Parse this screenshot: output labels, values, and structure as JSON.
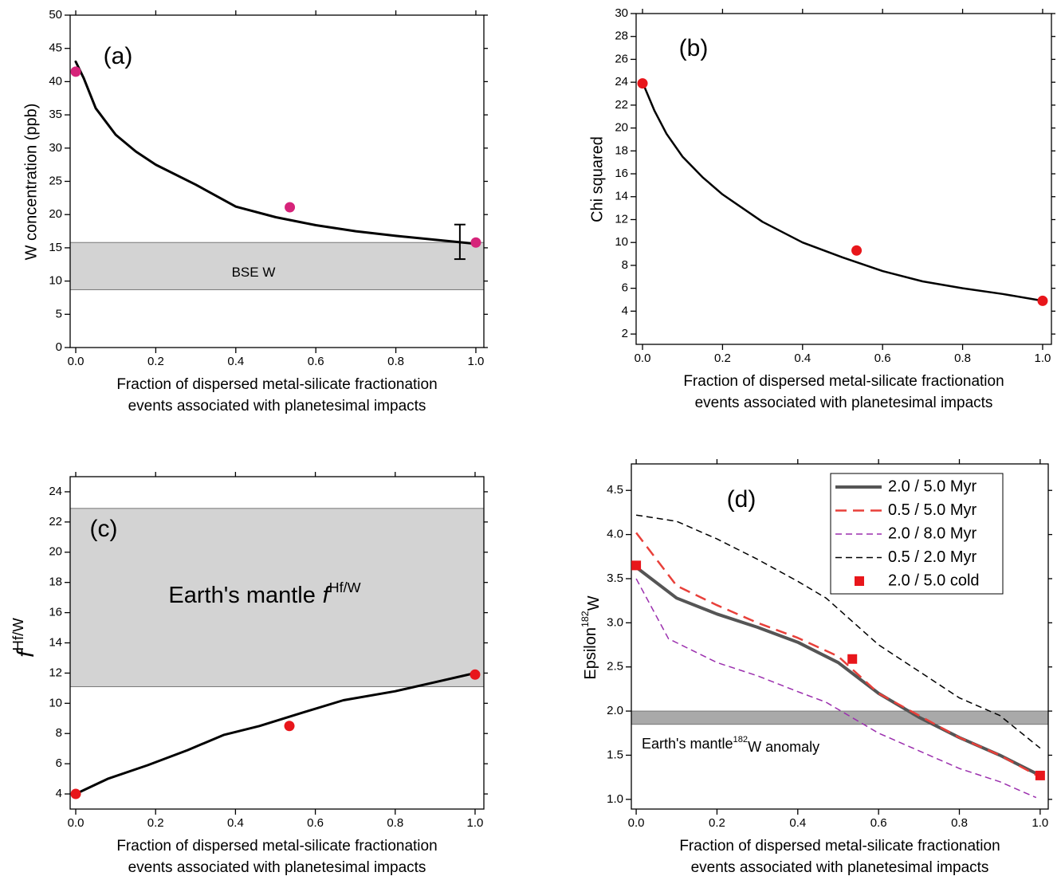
{
  "chart_data": [
    {
      "type": "line",
      "panel_label": "(a)",
      "ylabel": "W concentration (ppb)",
      "xlabel": [
        "Fraction of dispersed metal-silicate fractionation",
        "events associated with planetesimal impacts"
      ],
      "xlim": [
        -0.014,
        1.02
      ],
      "ylim": [
        0,
        50
      ],
      "xticks": [
        {
          "value": 0,
          "label": "0.0"
        },
        0.2,
        0.4,
        0.6,
        0.8,
        {
          "value": 1,
          "label": "1.0"
        }
      ],
      "yticks": [
        0,
        5,
        10,
        15,
        20,
        25,
        30,
        35,
        40,
        45,
        50
      ],
      "bands": [
        {
          "y0": 8.7,
          "y1": 15.8,
          "color": "#d3d3d3",
          "label": [
            "BSE W"
          ]
        }
      ],
      "series": [
        {
          "color": "#000000",
          "linewidth": 3,
          "line_style": "solid",
          "x": [
            0,
            0.02,
            0.05,
            0.1,
            0.15,
            0.2,
            0.3,
            0.4,
            0.5,
            0.6,
            0.7,
            0.8,
            0.9,
            1.0
          ],
          "values": [
            43,
            40.5,
            36,
            32,
            29.5,
            27.5,
            24.5,
            21.2,
            19.6,
            18.4,
            17.5,
            16.8,
            16.2,
            15.6
          ]
        },
        {
          "color": "#d6247a",
          "marker": "circle",
          "x": [
            0,
            0.535,
            1.0
          ],
          "values": [
            41.5,
            21.1,
            15.8
          ]
        }
      ],
      "error_bars": {
        "color": "#000000",
        "x": [
          0.96
        ],
        "values": [
          15.9
        ],
        "errors": [
          2.6
        ]
      }
    },
    {
      "type": "line",
      "panel_label": "(b)",
      "ylabel": "Chi squared",
      "xlabel": [
        "Fraction of dispersed metal-silicate fractionation",
        "events associated with planetesimal impacts"
      ],
      "xlim": [
        -0.016,
        1.022
      ],
      "ylim": [
        1.1,
        30
      ],
      "xticks": [
        {
          "value": 0,
          "label": "0.0"
        },
        0.2,
        0.4,
        0.6,
        0.8,
        {
          "value": 1,
          "label": "1.0"
        }
      ],
      "yticks": [
        2,
        4,
        6,
        8,
        10,
        12,
        14,
        16,
        18,
        20,
        22,
        24,
        26,
        28,
        30
      ],
      "series": [
        {
          "color": "#000000",
          "linewidth": 2.5,
          "line_style": "solid",
          "x": [
            0,
            0.03,
            0.06,
            0.1,
            0.15,
            0.2,
            0.3,
            0.4,
            0.5,
            0.6,
            0.7,
            0.8,
            0.9,
            1.0
          ],
          "values": [
            24,
            21.5,
            19.5,
            17.5,
            15.7,
            14.2,
            11.8,
            10,
            8.7,
            7.5,
            6.6,
            6,
            5.5,
            4.9
          ]
        },
        {
          "color": "#e8161b",
          "marker": "circle",
          "x": [
            0,
            0.535,
            1.0
          ],
          "values": [
            23.9,
            9.3,
            4.9
          ]
        }
      ]
    },
    {
      "type": "line",
      "panel_label": "(c)",
      "ylabel": [
        "f",
        "Hf/W"
      ],
      "xlabel": [
        "Fraction of dispersed metal-silicate fractionation",
        "events associated with planetesimal impacts"
      ],
      "xlim": [
        -0.014,
        1.022
      ],
      "ylim": [
        3,
        25
      ],
      "xticks": [
        {
          "value": 0,
          "label": "0.0"
        },
        0.2,
        0.4,
        0.6,
        0.8,
        {
          "value": 1,
          "label": "1.0"
        }
      ],
      "yticks": [
        4,
        6,
        8,
        10,
        12,
        14,
        16,
        18,
        20,
        22,
        24
      ],
      "bands": [
        {
          "y0": 11.1,
          "y1": 22.9,
          "color": "#d3d3d3",
          "label": [
            "Earth's mantle",
            "f",
            "Hf/W"
          ]
        }
      ],
      "series": [
        {
          "color": "#000000",
          "linewidth": 3,
          "line_style": "solid",
          "x": [
            0,
            0.08,
            0.18,
            0.28,
            0.37,
            0.46,
            0.57,
            0.67,
            0.8,
            0.9,
            1.0
          ],
          "values": [
            4,
            5,
            5.9,
            6.9,
            7.9,
            8.5,
            9.4,
            10.2,
            10.8,
            11.4,
            12
          ]
        },
        {
          "color": "#e8161b",
          "marker": "circle",
          "x": [
            0,
            0.535,
            1.0
          ],
          "values": [
            4,
            8.5,
            11.9
          ]
        }
      ]
    },
    {
      "type": "line",
      "panel_label": "(d)",
      "ylabel": [
        "Epsilon",
        "182",
        "W"
      ],
      "xlabel": [
        "Fraction of dispersed metal-silicate fractionation",
        "events associated with planetesimal impacts"
      ],
      "xlim": [
        -0.012,
        1.02
      ],
      "ylim": [
        0.89,
        4.8
      ],
      "xticks": [
        {
          "value": 0,
          "label": "0.0"
        },
        0.2,
        0.4,
        0.6,
        0.8,
        {
          "value": 1,
          "label": "1.0"
        }
      ],
      "yticks": [
        {
          "value": 1,
          "label": "1.0"
        },
        1.5,
        {
          "value": 2,
          "label": "2.0"
        },
        2.5,
        {
          "value": 3,
          "label": "3.0"
        },
        3.5,
        {
          "value": 4,
          "label": "4.0"
        },
        4.5
      ],
      "bands": [
        {
          "y0": 1.85,
          "y1": 2.0,
          "color": "#a9a9a9",
          "label": [
            "Earth's mantle",
            "182",
            "W anomaly"
          ]
        }
      ],
      "legend": "upper right",
      "series": [
        {
          "name": "2.0 / 5.0 Myr",
          "color": "#555555",
          "linewidth": 4,
          "line_style": "solid",
          "x": [
            0,
            0.1,
            0.2,
            0.3,
            0.4,
            0.5,
            0.6,
            0.7,
            0.8,
            0.9,
            1.0
          ],
          "values": [
            3.63,
            3.28,
            3.1,
            2.95,
            2.78,
            2.55,
            2.2,
            1.93,
            1.7,
            1.5,
            1.27
          ]
        },
        {
          "name": "0.5 / 5.0 Myr",
          "color": "#e8403a",
          "linewidth": 2.5,
          "line_style": "dashed",
          "x": [
            0,
            0.1,
            0.2,
            0.3,
            0.4,
            0.5,
            0.6,
            0.7,
            0.8,
            0.9,
            1.0
          ],
          "values": [
            4.02,
            3.42,
            3.2,
            3.0,
            2.83,
            2.62,
            2.2,
            1.95,
            1.7,
            1.5,
            1.25
          ]
        },
        {
          "name": "2.0 / 8.0 Myr",
          "color": "#9b2fae",
          "linewidth": 1.5,
          "line_style": "dashed",
          "x": [
            0,
            0.08,
            0.2,
            0.3,
            0.4,
            0.47,
            0.6,
            0.7,
            0.8,
            0.9,
            0.99
          ],
          "values": [
            3.5,
            2.82,
            2.55,
            2.4,
            2.22,
            2.1,
            1.75,
            1.55,
            1.35,
            1.2,
            1.02
          ]
        },
        {
          "name": "0.5 / 2.0 Myr",
          "color": "#000000",
          "linewidth": 1.5,
          "line_style": "dashed",
          "x": [
            0,
            0.1,
            0.2,
            0.3,
            0.4,
            0.47,
            0.6,
            0.7,
            0.8,
            0.9,
            1.0
          ],
          "values": [
            4.22,
            4.15,
            3.95,
            3.72,
            3.47,
            3.28,
            2.75,
            2.45,
            2.15,
            1.95,
            1.58
          ]
        },
        {
          "name": "2.0 / 5.0 cold",
          "color": "#e8161b",
          "marker": "square",
          "x": [
            0,
            0.535,
            1.0
          ],
          "values": [
            3.65,
            2.59,
            1.27
          ]
        }
      ]
    }
  ]
}
